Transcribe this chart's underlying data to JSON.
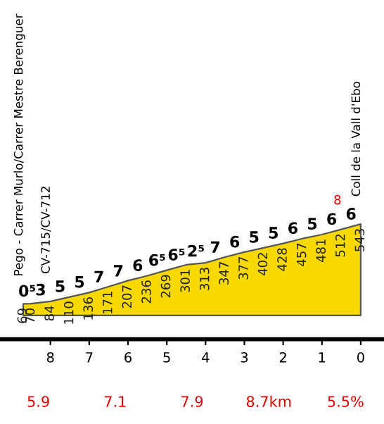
{
  "chart_data": {
    "type": "area",
    "x": [
      8.7,
      8.5,
      8.0,
      7.5,
      7.0,
      6.5,
      6.0,
      5.5,
      5.0,
      4.5,
      4.0,
      3.5,
      3.0,
      2.5,
      2.0,
      1.5,
      1.0,
      0.5,
      0.0
    ],
    "values": [
      69,
      70,
      84,
      110,
      136,
      171,
      207,
      236,
      269,
      301,
      313,
      347,
      377,
      402,
      428,
      457,
      481,
      512,
      543
    ],
    "color": "#f7d900",
    "value_labels": [
      "69",
      "70",
      "84",
      "110",
      "136",
      "171",
      "207",
      "236",
      "269",
      "301",
      "313",
      "347",
      "377",
      "402",
      "428",
      "457",
      "481",
      "512",
      "543"
    ],
    "xlim": [
      9.3,
      -0.6
    ],
    "xticks": [
      8,
      7,
      6,
      5,
      4,
      3,
      2,
      1,
      0
    ],
    "tick_labels": "x",
    "annotations": [
      {
        "text": "Pego - Carrer Murlo/Carrer Mestre Berenguer",
        "x": 8.7,
        "y": 69
      },
      {
        "text": "CV-715/CV-712",
        "x": 8.0,
        "y": 84
      },
      {
        "text": "Coll de la Vall d'Ebo",
        "x": 0.0,
        "y": 543
      },
      {
        "text": "8",
        "x": 0.6,
        "y": 505
      },
      {
        "text": "0⁵",
        "x": 8.6,
        "y": 70
      },
      {
        "text": "3",
        "x": 8.25,
        "y": 77
      },
      {
        "text": "5",
        "x": 7.75,
        "y": 97
      },
      {
        "text": "5",
        "x": 7.25,
        "y": 123
      },
      {
        "text": "7",
        "x": 6.75,
        "y": 154
      },
      {
        "text": "7",
        "x": 6.25,
        "y": 189
      },
      {
        "text": "6",
        "x": 5.75,
        "y": 222
      },
      {
        "text": "6⁵",
        "x": 5.25,
        "y": 253
      },
      {
        "text": "6⁵",
        "x": 4.75,
        "y": 285
      },
      {
        "text": "2⁵",
        "x": 4.25,
        "y": 307
      },
      {
        "text": "7",
        "x": 3.75,
        "y": 330
      },
      {
        "text": "6",
        "x": 3.25,
        "y": 362
      },
      {
        "text": "5",
        "x": 2.75,
        "y": 390
      },
      {
        "text": "5",
        "x": 2.25,
        "y": 415
      },
      {
        "text": "6",
        "x": 1.75,
        "y": 443
      },
      {
        "text": "5",
        "x": 1.25,
        "y": 469
      },
      {
        "text": "6",
        "x": 0.75,
        "y": 497
      },
      {
        "text": "6",
        "x": 0.25,
        "y": 528
      },
      "5.9",
      "7.1",
      "7.9",
      "8.7km",
      "5.5%"
    ]
  }
}
